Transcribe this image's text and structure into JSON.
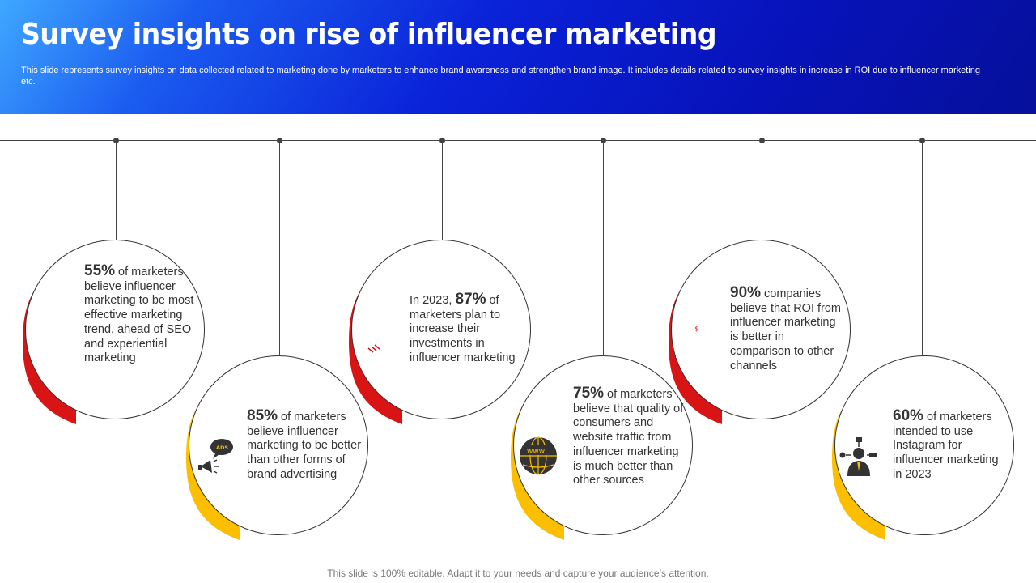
{
  "header": {
    "title": "Survey insights on rise of influencer marketing",
    "subtitle": "This slide represents survey insights on data collected related to marketing done by marketers to enhance brand awareness and strengthen brand image. It includes details related to survey insights in increase in ROI due to influencer marketing etc."
  },
  "colors": {
    "red": "#d91414",
    "yellow": "#fbbf00",
    "header_blue": "#0a22d8"
  },
  "insights": [
    {
      "pre": "",
      "stat": "55%",
      "post": " of marketers believe influencer marketing to be most effective marketing trend, ahead of SEO and experiential marketing",
      "icon": "chart-search-icon",
      "color": "red"
    },
    {
      "pre": "",
      "stat": "85%",
      "post": " of marketers believe influencer marketing to be better than other forms of brand advertising",
      "icon": "ads-megaphone-icon",
      "color": "yellow"
    },
    {
      "pre": "In 2023, ",
      "stat": "87%",
      "post": " of marketers plan to increase their investments in influencer marketing",
      "icon": "handshake-money-icon",
      "color": "red"
    },
    {
      "pre": "",
      "stat": "75%",
      "post": " of marketers believe that quality of consumers and website traffic from influencer marketing is much better than other sources",
      "icon": "www-globe-icon",
      "color": "yellow"
    },
    {
      "pre": "",
      "stat": "90%",
      "post": " companies believe that ROI from influencer marketing is better in comparison to other channels",
      "icon": "hand-plant-coins-icon",
      "color": "red"
    },
    {
      "pre": "",
      "stat": "60%",
      "post": " of marketers intended to use Instagram for influencer marketing in 2023",
      "icon": "businessman-network-icon",
      "color": "yellow"
    }
  ],
  "footer": "This slide is 100% editable. Adapt it to your needs and capture your audience’s attention."
}
